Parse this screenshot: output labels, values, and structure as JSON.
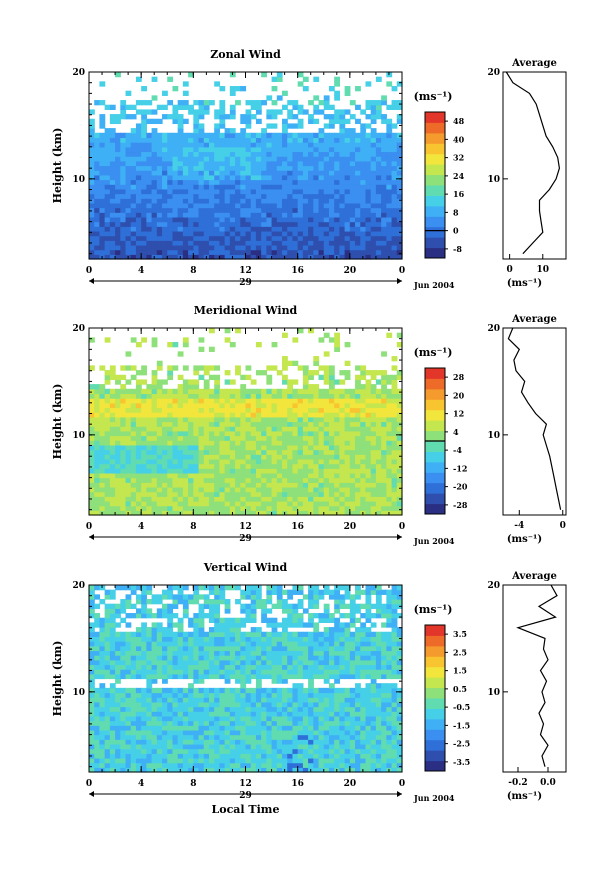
{
  "colors": [
    "#2a2f83",
    "#2e4fae",
    "#2f6fd8",
    "#3a8ff0",
    "#3fb0f5",
    "#46d0e8",
    "#60dcb0",
    "#8ee07a",
    "#c4e64e",
    "#f2e63c",
    "#f8c430",
    "#f59a2c",
    "#ee6a28",
    "#e2362a"
  ],
  "chart_data": [
    {
      "type": "heatmap",
      "title": "Zonal Wind",
      "ylabel": "Height (km)",
      "xlabel": "",
      "xticks": [
        "0",
        "4",
        "8",
        "12",
        "16",
        "20",
        "0"
      ],
      "yticks": [
        "20",
        "10"
      ],
      "date_label": "29",
      "month_label": "Jun 2004",
      "ylim": [
        2.5,
        20
      ],
      "xlim": [
        0,
        24
      ],
      "unit": "(ms⁻¹)",
      "colorbar": [
        "-8",
        "0",
        "8",
        "16",
        "24",
        "32",
        "40",
        "48"
      ],
      "colorbar_range": [
        -12,
        52
      ],
      "zero_line": 0,
      "profile": {
        "title": "Average",
        "xticks": [
          "0",
          "10"
        ],
        "xlim": [
          -2,
          17
        ],
        "unit": "(ms⁻¹)",
        "heights": [
          3,
          4,
          5,
          6,
          7,
          8,
          9,
          10,
          11,
          12,
          13,
          14,
          15,
          16,
          17,
          18,
          19,
          20
        ],
        "values": [
          4,
          7,
          10,
          9.5,
          9,
          9,
          12,
          14,
          15,
          14.5,
          13,
          11,
          10,
          9,
          8,
          6,
          1,
          -1
        ]
      }
    },
    {
      "type": "heatmap",
      "title": "Meridional Wind",
      "ylabel": "Height (km)",
      "xlabel": "",
      "xticks": [
        "0",
        "4",
        "8",
        "12",
        "16",
        "20",
        "0"
      ],
      "yticks": [
        "20",
        "10"
      ],
      "date_label": "29",
      "month_label": "Jun 2004",
      "ylim": [
        2.5,
        20
      ],
      "xlim": [
        0,
        24
      ],
      "unit": "(ms⁻¹)",
      "colorbar": [
        "-28",
        "-20",
        "-12",
        "-4",
        "4",
        "12",
        "20",
        "28"
      ],
      "colorbar_range": [
        -32,
        32
      ],
      "zero_line": 0,
      "profile": {
        "title": "Average",
        "xticks": [
          "-4",
          "0"
        ],
        "xlim": [
          -5.5,
          0.3
        ],
        "unit": "(ms⁻¹)",
        "heights": [
          3,
          4,
          5,
          6,
          7,
          8,
          9,
          10,
          11,
          12,
          13,
          14,
          15,
          16,
          17,
          18,
          19,
          20
        ],
        "values": [
          -0.2,
          -0.4,
          -0.6,
          -0.8,
          -1,
          -1.2,
          -1.5,
          -1.8,
          -1.5,
          -2.5,
          -3.2,
          -3.8,
          -3.5,
          -4.3,
          -4.5,
          -4,
          -5,
          -4.6
        ]
      }
    },
    {
      "type": "heatmap",
      "title": "Vertical Wind",
      "ylabel": "Height (km)",
      "xlabel": "Local Time",
      "xticks": [
        "0",
        "4",
        "8",
        "12",
        "16",
        "20",
        "0"
      ],
      "yticks": [
        "20",
        "10"
      ],
      "date_label": "29",
      "month_label": "Jun 2004",
      "ylim": [
        2.5,
        20
      ],
      "xlim": [
        0,
        24
      ],
      "unit": "(ms⁻¹)",
      "colorbar": [
        "-3.5",
        "-2.5",
        "-1.5",
        "-0.5",
        "0.5",
        "1.5",
        "2.5",
        "3.5"
      ],
      "colorbar_range": [
        -4,
        4
      ],
      "zero_line": null,
      "profile": {
        "title": "Average",
        "xticks": [
          "-0.2",
          "0.0"
        ],
        "xlim": [
          -0.3,
          0.12
        ],
        "unit": "(ms⁻¹)",
        "heights": [
          3,
          4,
          5,
          6,
          7,
          8,
          9,
          10,
          11,
          12,
          13,
          14,
          15,
          16,
          17,
          18,
          19,
          20
        ],
        "values": [
          -0.02,
          -0.04,
          0.0,
          -0.05,
          -0.03,
          -0.06,
          -0.02,
          -0.04,
          -0.01,
          -0.05,
          0.0,
          -0.03,
          -0.02,
          -0.2,
          0.05,
          -0.06,
          0.06,
          0.02
        ]
      }
    }
  ]
}
